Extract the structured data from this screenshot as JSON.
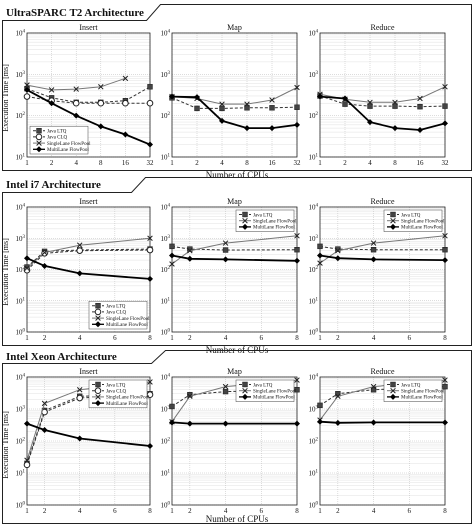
{
  "sections": [
    {
      "title": "UltraSPARC T2 Architecture",
      "ylabel": "Execution Time [ms]",
      "xlabel": "Number of CPUs"
    },
    {
      "title": "Intel i7 Architecture",
      "ylabel": "Execution Time [ms]",
      "xlabel": "Number of CPUs"
    },
    {
      "title": "Intel Xeon Architecture",
      "ylabel": "Execution Time [ms]",
      "xlabel": "Number of CPUs"
    }
  ],
  "chart_data": [
    {
      "type": "line",
      "section": "UltraSPARC T2 Architecture",
      "title": "Insert",
      "log_x": true,
      "log_y": true,
      "x": [
        1,
        2,
        4,
        8,
        16,
        32
      ],
      "xticks": [
        "1",
        "2",
        "4",
        "8",
        "16",
        "32"
      ],
      "ylim": [
        10,
        10000
      ],
      "grid": true,
      "legend": "bottom-left",
      "series": [
        {
          "name": "Java LTQ",
          "marker": "square",
          "style": "dashed",
          "values": [
            450,
            270,
            210,
            210,
            230,
            500
          ]
        },
        {
          "name": "Java CLQ",
          "marker": "circle",
          "style": "dashed",
          "values": [
            290,
            230,
            200,
            200,
            200,
            200
          ]
        },
        {
          "name": "SingleLane FlowPool",
          "marker": "x",
          "style": "solid-gray",
          "values": [
            550,
            420,
            440,
            500,
            800,
            null
          ]
        },
        {
          "name": "MultiLane FlowPool",
          "marker": "diamond",
          "style": "solid-thick",
          "values": [
            420,
            200,
            100,
            55,
            35,
            20
          ]
        }
      ]
    },
    {
      "type": "line",
      "section": "UltraSPARC T2 Architecture",
      "title": "Map",
      "log_x": true,
      "log_y": true,
      "x": [
        1,
        2,
        4,
        8,
        16,
        32
      ],
      "xticks": [
        "1",
        "2",
        "4",
        "8",
        "16",
        "32"
      ],
      "ylim": [
        10,
        10000
      ],
      "grid": true,
      "legend": "none",
      "series": [
        {
          "name": "Java LTQ",
          "marker": "square",
          "style": "dashed",
          "values": [
            270,
            150,
            150,
            155,
            155,
            160
          ]
        },
        {
          "name": "SingleLane FlowPool",
          "marker": "x",
          "style": "solid-gray",
          "values": [
            290,
            260,
            190,
            190,
            240,
            480
          ]
        },
        {
          "name": "MultiLane FlowPool",
          "marker": "diamond",
          "style": "solid-thick",
          "values": [
            290,
            280,
            75,
            50,
            50,
            60
          ]
        }
      ]
    },
    {
      "type": "line",
      "section": "UltraSPARC T2 Architecture",
      "title": "Reduce",
      "log_x": true,
      "log_y": true,
      "x": [
        1,
        2,
        4,
        8,
        16,
        32
      ],
      "xticks": [
        "1",
        "2",
        "4",
        "8",
        "16",
        "32"
      ],
      "ylim": [
        10,
        10000
      ],
      "grid": true,
      "legend": "none",
      "series": [
        {
          "name": "Java LTQ",
          "marker": "square",
          "style": "dashed",
          "values": [
            300,
            190,
            170,
            170,
            165,
            170
          ]
        },
        {
          "name": "SingleLane FlowPool",
          "marker": "x",
          "style": "solid-gray",
          "values": [
            330,
            250,
            210,
            210,
            260,
            500
          ]
        },
        {
          "name": "MultiLane FlowPool",
          "marker": "diamond",
          "style": "solid-thick",
          "values": [
            290,
            260,
            70,
            50,
            45,
            65
          ]
        }
      ]
    },
    {
      "type": "line",
      "section": "Intel i7 Architecture",
      "title": "Insert",
      "log_x": false,
      "log_y": true,
      "x": [
        1,
        2,
        4,
        8
      ],
      "xticks": [
        "1",
        "2",
        "4",
        "6",
        "8"
      ],
      "ylim": [
        1,
        10000
      ],
      "grid": true,
      "legend": "bottom-right",
      "series": [
        {
          "name": "Java LTQ",
          "marker": "square",
          "style": "dashed",
          "values": [
            120,
            380,
            420,
            450
          ]
        },
        {
          "name": "Java CLQ",
          "marker": "circle",
          "style": "dashed",
          "values": [
            95,
            330,
            400,
            420
          ]
        },
        {
          "name": "SingleLane FlowPool",
          "marker": "x",
          "style": "solid-gray",
          "values": [
            110,
            350,
            600,
            1000
          ]
        },
        {
          "name": "MultiLane FlowPool",
          "marker": "diamond",
          "style": "solid-thick",
          "values": [
            230,
            130,
            75,
            50
          ]
        }
      ]
    },
    {
      "type": "line",
      "section": "Intel i7 Architecture",
      "title": "Map",
      "log_x": false,
      "log_y": true,
      "x": [
        1,
        2,
        4,
        8
      ],
      "xticks": [
        "1",
        "2",
        "4",
        "6",
        "8"
      ],
      "ylim": [
        1,
        10000
      ],
      "grid": true,
      "legend": "top-right",
      "series": [
        {
          "name": "Java LTQ",
          "marker": "square",
          "style": "dashed",
          "values": [
            550,
            450,
            420,
            430
          ]
        },
        {
          "name": "SingleLane FlowPool",
          "marker": "x",
          "style": "solid-gray",
          "values": [
            150,
            400,
            700,
            1200
          ]
        },
        {
          "name": "MultiLane FlowPool",
          "marker": "diamond",
          "style": "solid-thick",
          "values": [
            280,
            220,
            210,
            190
          ]
        }
      ]
    },
    {
      "type": "line",
      "section": "Intel i7 Architecture",
      "title": "Reduce",
      "log_x": false,
      "log_y": true,
      "x": [
        1,
        2,
        4,
        8
      ],
      "xticks": [
        "1",
        "2",
        "4",
        "6",
        "8"
      ],
      "ylim": [
        1,
        10000
      ],
      "grid": true,
      "legend": "top-right",
      "series": [
        {
          "name": "Java LTQ",
          "marker": "square",
          "style": "dashed",
          "values": [
            550,
            450,
            430,
            430
          ]
        },
        {
          "name": "SingleLane FlowPool",
          "marker": "x",
          "style": "solid-gray",
          "values": [
            160,
            400,
            700,
            1200
          ]
        },
        {
          "name": "MultiLane FlowPool",
          "marker": "diamond",
          "style": "solid-thick",
          "values": [
            280,
            230,
            210,
            200
          ]
        }
      ]
    },
    {
      "type": "line",
      "section": "Intel Xeon Architecture",
      "title": "Insert",
      "log_x": false,
      "log_y": true,
      "x": [
        1,
        2,
        4,
        8
      ],
      "xticks": [
        "1",
        "2",
        "4",
        "6",
        "8"
      ],
      "ylim": [
        1,
        10000
      ],
      "grid": true,
      "legend": "top-right",
      "series": [
        {
          "name": "Java LTQ",
          "marker": "square",
          "style": "dashed",
          "values": [
            20,
            900,
            2500,
            3000
          ]
        },
        {
          "name": "Java CLQ",
          "marker": "circle",
          "style": "dashed",
          "values": [
            18,
            800,
            2200,
            2800
          ]
        },
        {
          "name": "SingleLane FlowPool",
          "marker": "x",
          "style": "solid-gray",
          "values": [
            25,
            1500,
            4000,
            7000
          ]
        },
        {
          "name": "MultiLane FlowPool",
          "marker": "diamond",
          "style": "solid-thick",
          "values": [
            350,
            220,
            120,
            70
          ]
        }
      ]
    },
    {
      "type": "line",
      "section": "Intel Xeon Architecture",
      "title": "Map",
      "log_x": false,
      "log_y": true,
      "x": [
        1,
        2,
        4,
        8
      ],
      "xticks": [
        "1",
        "2",
        "4",
        "6",
        "8"
      ],
      "ylim": [
        1,
        10000
      ],
      "grid": true,
      "legend": "top-right",
      "series": [
        {
          "name": "Java LTQ",
          "marker": "square",
          "style": "dashed",
          "values": [
            1200,
            2800,
            3500,
            4000
          ]
        },
        {
          "name": "SingleLane FlowPool",
          "marker": "x",
          "style": "solid-gray",
          "values": [
            400,
            2500,
            5000,
            8000
          ]
        },
        {
          "name": "MultiLane FlowPool",
          "marker": "diamond",
          "style": "solid-thick",
          "values": [
            380,
            350,
            350,
            350
          ]
        }
      ]
    },
    {
      "type": "line",
      "section": "Intel Xeon Architecture",
      "title": "Reduce",
      "log_x": false,
      "log_y": true,
      "x": [
        1,
        2,
        4,
        8
      ],
      "xticks": [
        "1",
        "2",
        "4",
        "6",
        "8"
      ],
      "ylim": [
        1,
        10000
      ],
      "grid": true,
      "legend": "top-right",
      "series": [
        {
          "name": "Java LTQ",
          "marker": "square",
          "style": "dashed",
          "values": [
            1300,
            3000,
            4000,
            5000
          ]
        },
        {
          "name": "SingleLane FlowPool",
          "marker": "x",
          "style": "solid-gray",
          "values": [
            450,
            2500,
            5000,
            8000
          ]
        },
        {
          "name": "MultiLane FlowPool",
          "marker": "diamond",
          "style": "solid-thick",
          "values": [
            400,
            370,
            380,
            380
          ]
        }
      ]
    }
  ]
}
